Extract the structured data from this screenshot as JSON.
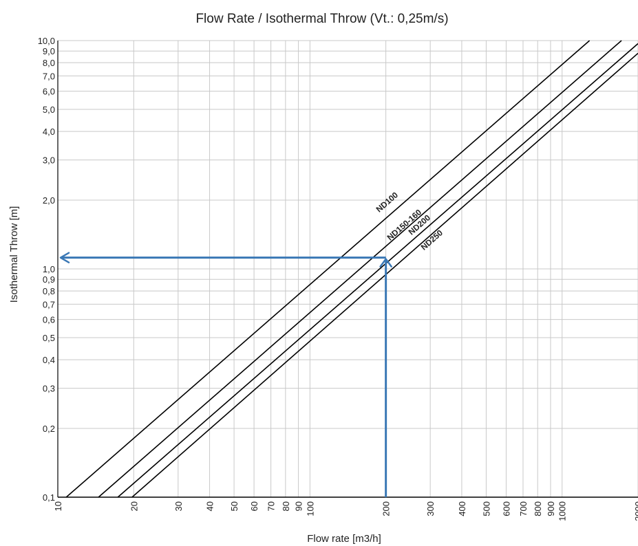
{
  "chart_data": {
    "type": "line",
    "title": "Flow Rate / Isothermal Throw (Vt.: 0,25m/s)",
    "xlabel": "Flow rate [m3/h]",
    "ylabel": "Isothermal Throw [m]",
    "xscale": "log",
    "yscale": "log",
    "xlim": [
      10,
      2000
    ],
    "ylim": [
      0.1,
      10
    ],
    "grid": true,
    "legend": "none",
    "x_ticks": [
      10,
      20,
      30,
      40,
      50,
      60,
      70,
      80,
      90,
      100,
      200,
      300,
      400,
      500,
      600,
      700,
      800,
      900,
      1000,
      2000
    ],
    "x_tick_labels": [
      "10",
      "20",
      "30",
      "40",
      "50",
      "60",
      "70",
      "80",
      "90",
      "100",
      "200",
      "300",
      "400",
      "500",
      "600",
      "700",
      "800",
      "900",
      "1000",
      "2000"
    ],
    "y_ticks": [
      0.1,
      0.2,
      0.3,
      0.4,
      0.5,
      0.6,
      0.7,
      0.8,
      0.9,
      1.0,
      2.0,
      3.0,
      4.0,
      5.0,
      6.0,
      7.0,
      8.0,
      9.0,
      10.0
    ],
    "y_tick_labels": [
      "0,1",
      "0,2",
      "0,3",
      "0,4",
      "0,5",
      "0,6",
      "0,7",
      "0,8",
      "0,9",
      "1,0",
      "2,0",
      "3,0",
      "4,0",
      "5,0",
      "6,0",
      "7,0",
      "8,0",
      "9,0",
      "10,0"
    ],
    "series": [
      {
        "name": "ND100",
        "x": [
          10.8,
          1285
        ],
        "y": [
          0.1,
          10.0
        ]
      },
      {
        "name": "ND150-160",
        "x": [
          14.5,
          1720
        ],
        "y": [
          0.1,
          10.0
        ]
      },
      {
        "name": "ND200",
        "x": [
          17.3,
          2000
        ],
        "y": [
          0.1,
          9.7
        ]
      },
      {
        "name": "ND250",
        "x": [
          19.7,
          2000
        ],
        "y": [
          0.1,
          8.8
        ]
      }
    ],
    "annotations": {
      "color": "#3a78b5",
      "example_flow": 200,
      "example_throw": 1.12
    },
    "colors": {
      "series": "#000000",
      "grid": "#c8c8c8",
      "annotation": "#3a78b5"
    }
  }
}
